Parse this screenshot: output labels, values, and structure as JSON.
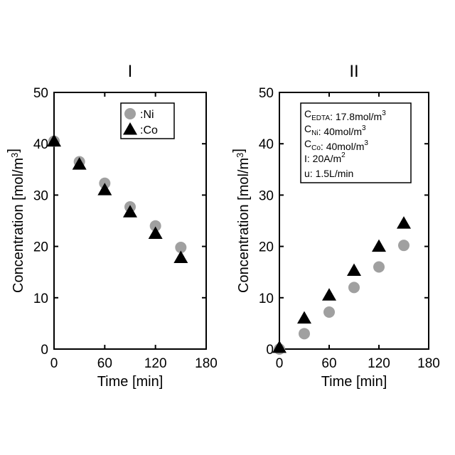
{
  "chart_data": [
    {
      "type": "scatter",
      "title": "I",
      "x_label": "Time [min]",
      "y_label": [
        {
          "text": "Concentration [mol/m"
        },
        {
          "sup": "3"
        },
        {
          "text": "]"
        }
      ],
      "x": [
        0,
        30,
        60,
        90,
        120,
        150
      ],
      "series": [
        {
          "name": ":Ni",
          "color": "#a0a0a0",
          "marker": "circle",
          "values": [
            40.5,
            36.5,
            32.3,
            27.7,
            24,
            19.8
          ]
        },
        {
          "name": ":Co",
          "color": "#000000",
          "marker": "triangle",
          "values": [
            40.5,
            36,
            31,
            26.7,
            22.5,
            17.8
          ]
        }
      ],
      "xlim": [
        0,
        180
      ],
      "xticks": [
        0,
        60,
        120,
        180
      ],
      "ylim": [
        0,
        50
      ],
      "yticks": [
        0,
        10,
        20,
        30,
        40,
        50
      ],
      "legend": true
    },
    {
      "type": "scatter",
      "title": "II",
      "x_label": "Time [min]",
      "y_label": [
        {
          "text": "Concentration [mol/m"
        },
        {
          "sup": "3"
        },
        {
          "text": "]"
        }
      ],
      "x": [
        0,
        30,
        60,
        90,
        120,
        150
      ],
      "series": [
        {
          "color": "#a0a0a0",
          "marker": "circle",
          "values": [
            0,
            3,
            7.2,
            12,
            16,
            20.2
          ]
        },
        {
          "color": "#000000",
          "marker": "triangle",
          "values": [
            0.3,
            6,
            10.5,
            15.3,
            20,
            24.5
          ]
        }
      ],
      "xlim": [
        0,
        180
      ],
      "xticks": [
        0,
        60,
        120,
        180
      ],
      "ylim": [
        0,
        50
      ],
      "yticks": [
        0,
        10,
        20,
        30,
        40,
        50
      ],
      "legend": false,
      "annotations": [
        [
          {
            "text": "C"
          },
          {
            "sub": "EDTA"
          },
          {
            "text": ": 17.8mol/m"
          },
          {
            "sup": "3"
          }
        ],
        [
          {
            "text": "C"
          },
          {
            "sub": "Ni"
          },
          {
            "text": ": 40mol/m"
          },
          {
            "sup": "3"
          }
        ],
        [
          {
            "text": "C"
          },
          {
            "sub": "Co"
          },
          {
            "text": ": 40mol/m"
          },
          {
            "sup": "3"
          }
        ],
        [
          {
            "text": "I: 20A/m"
          },
          {
            "sup": "2"
          }
        ],
        [
          {
            "text": "u: 1.5L/min"
          }
        ]
      ]
    }
  ]
}
